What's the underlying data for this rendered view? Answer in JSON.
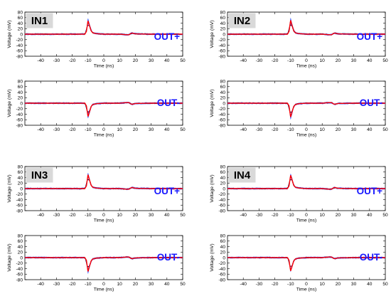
{
  "chart_data": [
    {
      "type": "line",
      "panel_label": "IN1",
      "channel_label": "OUT+",
      "polarity": 1,
      "peak": 48,
      "xlabel": "Time (ns)",
      "ylabel": "Voltage (mV)",
      "xlim": [
        -50,
        50
      ],
      "ylim": [
        -80,
        80
      ],
      "x_ticks": [
        -40,
        -30,
        -20,
        -10,
        0,
        10,
        20,
        30,
        40,
        50
      ],
      "y_ticks": [
        -80,
        -60,
        -40,
        -20,
        0,
        20,
        40,
        60,
        80
      ],
      "series": [
        {
          "color": "#ff0000",
          "x": [
            -50,
            -12,
            -11,
            -10,
            -9,
            -8,
            -7,
            -5,
            0,
            10,
            14,
            16,
            17,
            18,
            20,
            30,
            50
          ],
          "y": [
            0,
            0,
            10,
            48,
            30,
            12,
            5,
            2,
            0,
            0,
            -2,
            -2,
            2,
            4,
            1,
            0,
            0
          ]
        }
      ],
      "colors": {
        "traces": "#3355ff",
        "mean": "#ff0000"
      }
    },
    {
      "type": "line",
      "panel_label": "",
      "channel_label": "OUT-",
      "polarity": -1,
      "peak": -48,
      "xlabel": "Time (ns)",
      "ylabel": "Voltage (mV)",
      "xlim": [
        -50,
        50
      ],
      "ylim": [
        -80,
        80
      ],
      "x_ticks": [
        -40,
        -30,
        -20,
        -10,
        0,
        10,
        20,
        30,
        40,
        50
      ],
      "y_ticks": [
        -80,
        -60,
        -40,
        -20,
        0,
        20,
        40,
        60,
        80
      ],
      "series": [
        {
          "color": "#ff0000",
          "x": [
            -50,
            -12,
            -11,
            -10,
            -9,
            -8,
            -7,
            -5,
            0,
            10,
            14,
            16,
            17,
            18,
            20,
            30,
            50
          ],
          "y": [
            0,
            0,
            -10,
            -48,
            -30,
            -12,
            -5,
            -2,
            0,
            0,
            2,
            2,
            -2,
            -4,
            -1,
            0,
            0
          ]
        }
      ],
      "colors": {
        "traces": "#3355ff",
        "mean": "#ff0000"
      }
    },
    {
      "type": "line",
      "panel_label": "IN2",
      "channel_label": "OUT+",
      "polarity": 1,
      "peak": 50,
      "xlabel": "Time (ns)",
      "ylabel": "Voltage (mV)",
      "xlim": [
        -50,
        50
      ],
      "ylim": [
        -80,
        80
      ],
      "x_ticks": [
        -40,
        -30,
        -20,
        -10,
        0,
        10,
        20,
        30,
        40,
        50
      ],
      "y_ticks": [
        -80,
        -60,
        -40,
        -20,
        0,
        20,
        40,
        60,
        80
      ],
      "series": [
        {
          "color": "#ff0000",
          "x": [
            -50,
            -12,
            -11,
            -10,
            -9,
            -8,
            -7,
            -5,
            0,
            10,
            14,
            16,
            17,
            18,
            20,
            30,
            50
          ],
          "y": [
            0,
            0,
            10,
            50,
            30,
            12,
            5,
            2,
            0,
            0,
            -2,
            -2,
            2,
            4,
            1,
            0,
            0
          ]
        }
      ],
      "colors": {
        "traces": "#3355ff",
        "mean": "#ff0000"
      }
    },
    {
      "type": "line",
      "panel_label": "",
      "channel_label": "OUT-",
      "polarity": -1,
      "peak": -50,
      "xlabel": "Time (ns)",
      "ylabel": "Voltage (mV)",
      "xlim": [
        -50,
        50
      ],
      "ylim": [
        -80,
        80
      ],
      "x_ticks": [
        -40,
        -30,
        -20,
        -10,
        0,
        10,
        20,
        30,
        40,
        50
      ],
      "y_ticks": [
        -80,
        -60,
        -40,
        -20,
        0,
        20,
        40,
        60,
        80
      ],
      "series": [
        {
          "color": "#ff0000",
          "x": [
            -50,
            -12,
            -11,
            -10,
            -9,
            -8,
            -7,
            -5,
            0,
            10,
            14,
            16,
            17,
            18,
            20,
            30,
            50
          ],
          "y": [
            0,
            0,
            -10,
            -50,
            -30,
            -12,
            -5,
            -2,
            0,
            0,
            2,
            2,
            -2,
            -4,
            -1,
            0,
            0
          ]
        }
      ],
      "colors": {
        "traces": "#3355ff",
        "mean": "#ff0000"
      }
    },
    {
      "type": "line",
      "panel_label": "IN3",
      "channel_label": "OUT+",
      "polarity": 1,
      "peak": 50,
      "xlabel": "Time (ns)",
      "ylabel": "Voltage (mV)",
      "xlim": [
        -50,
        50
      ],
      "ylim": [
        -80,
        80
      ],
      "x_ticks": [
        -40,
        -30,
        -20,
        -10,
        0,
        10,
        20,
        30,
        40,
        50
      ],
      "y_ticks": [
        -80,
        -60,
        -40,
        -20,
        0,
        20,
        40,
        60,
        80
      ],
      "series": [
        {
          "color": "#ff0000",
          "x": [
            -50,
            -12,
            -11,
            -10,
            -9,
            -8,
            -7,
            -5,
            0,
            10,
            14,
            16,
            17,
            18,
            20,
            30,
            50
          ],
          "y": [
            0,
            0,
            10,
            50,
            30,
            12,
            5,
            2,
            0,
            0,
            -2,
            -2,
            2,
            4,
            1,
            0,
            0
          ]
        }
      ],
      "colors": {
        "traces": "#3355ff",
        "mean": "#ff0000"
      }
    },
    {
      "type": "line",
      "panel_label": "",
      "channel_label": "OUT-",
      "polarity": -1,
      "peak": -50,
      "xlabel": "Time (ns)",
      "ylabel": "Voltage (mV)",
      "xlim": [
        -50,
        50
      ],
      "ylim": [
        -80,
        80
      ],
      "x_ticks": [
        -40,
        -30,
        -20,
        -10,
        0,
        10,
        20,
        30,
        40,
        50
      ],
      "y_ticks": [
        -80,
        -60,
        -40,
        -20,
        0,
        20,
        40,
        60,
        80
      ],
      "series": [
        {
          "color": "#ff0000",
          "x": [
            -50,
            -12,
            -11,
            -10,
            -9,
            -8,
            -7,
            -5,
            0,
            10,
            14,
            16,
            17,
            18,
            20,
            30,
            50
          ],
          "y": [
            0,
            0,
            -10,
            -50,
            -30,
            -12,
            -5,
            -2,
            0,
            0,
            2,
            2,
            -2,
            -4,
            -1,
            0,
            0
          ]
        }
      ],
      "colors": {
        "traces": "#3355ff",
        "mean": "#ff0000"
      }
    },
    {
      "type": "line",
      "panel_label": "IN4",
      "channel_label": "OUT+",
      "polarity": 1,
      "peak": 48,
      "xlabel": "Time (ns)",
      "ylabel": "Voltage (mV)",
      "xlim": [
        -50,
        50
      ],
      "ylim": [
        -80,
        80
      ],
      "x_ticks": [
        -40,
        -30,
        -20,
        -10,
        0,
        10,
        20,
        30,
        40,
        50
      ],
      "y_ticks": [
        -80,
        -60,
        -40,
        -20,
        0,
        20,
        40,
        60,
        80
      ],
      "series": [
        {
          "color": "#ff0000",
          "x": [
            -50,
            -12,
            -11,
            -10,
            -9,
            -8,
            -7,
            -5,
            0,
            10,
            14,
            16,
            17,
            18,
            20,
            30,
            50
          ],
          "y": [
            0,
            0,
            10,
            48,
            30,
            12,
            5,
            2,
            0,
            0,
            -2,
            -2,
            2,
            4,
            1,
            0,
            0
          ]
        }
      ],
      "colors": {
        "traces": "#3355ff",
        "mean": "#ff0000"
      }
    },
    {
      "type": "line",
      "panel_label": "",
      "channel_label": "OUT-",
      "polarity": -1,
      "peak": -48,
      "xlabel": "Time (ns)",
      "ylabel": "Voltage (mV)",
      "xlim": [
        -50,
        50
      ],
      "ylim": [
        -80,
        80
      ],
      "x_ticks": [
        -40,
        -30,
        -20,
        -10,
        0,
        10,
        20,
        30,
        40,
        50
      ],
      "y_ticks": [
        -80,
        -60,
        -40,
        -20,
        0,
        20,
        40,
        60,
        80
      ],
      "series": [
        {
          "color": "#ff0000",
          "x": [
            -50,
            -12,
            -11,
            -10,
            -9,
            -8,
            -7,
            -5,
            0,
            10,
            14,
            16,
            17,
            18,
            20,
            30,
            50
          ],
          "y": [
            0,
            0,
            -10,
            -48,
            -30,
            -12,
            -5,
            -2,
            0,
            0,
            2,
            2,
            -2,
            -4,
            -1,
            0,
            0
          ]
        }
      ],
      "colors": {
        "traces": "#3355ff",
        "mean": "#ff0000"
      }
    }
  ]
}
